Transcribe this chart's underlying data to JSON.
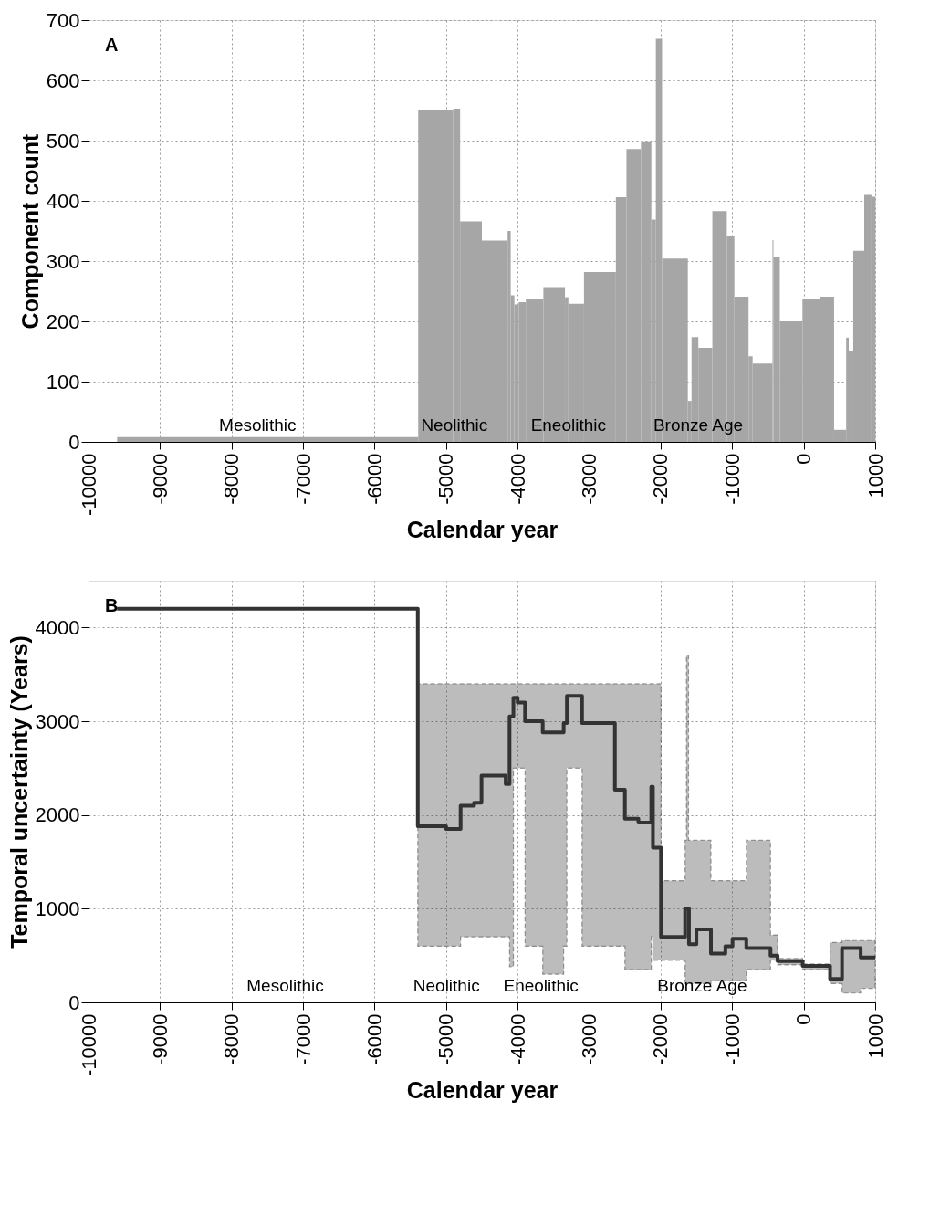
{
  "chart_data": [
    {
      "type": "histogram",
      "title": "A",
      "xlabel": "Calendar year",
      "ylabel": "Component count",
      "color": "#a6a6a6",
      "bins": [
        -9600,
        -5390,
        -4900,
        -4804,
        -4500,
        -4140,
        -4097,
        -4045,
        -3985,
        -3885,
        -3640,
        -3338,
        -3290,
        -3072,
        -2626,
        -2478,
        -2275,
        -2130,
        -2067,
        -1980,
        -1620,
        -1568,
        -1473,
        -1277,
        -1075,
        -969,
        -771,
        -714,
        -436,
        -423,
        -334,
        -17,
        224,
        425,
        594,
        630,
        693,
        847,
        948,
        1000
      ],
      "values": [
        8,
        551,
        553,
        366,
        334,
        350,
        243,
        228,
        232,
        237,
        257,
        240,
        229,
        282,
        406,
        486,
        499,
        369,
        669,
        304,
        68,
        174,
        156,
        383,
        341,
        241,
        142,
        130,
        335,
        306,
        200,
        237,
        241,
        20,
        173,
        150,
        317,
        410,
        407
      ],
      "xlim": [
        -10000,
        1000
      ],
      "xticks": [
        -10000,
        -9000,
        -8000,
        -7000,
        -6000,
        -5000,
        -4000,
        -3000,
        -2000,
        -1000,
        0,
        1000
      ],
      "ylim": [
        0,
        700
      ],
      "yticks": [
        0,
        100,
        200,
        300,
        400,
        500,
        600,
        700
      ],
      "grid": true,
      "annotations": [
        "Mesolithic",
        "Neolithic",
        "Eneolithic",
        "Bronze Age"
      ]
    },
    {
      "type": "step",
      "title": "B",
      "xlabel": "Calendar year",
      "ylabel": "Temporal uncertainty (Years)",
      "series": [
        {
          "color": "#333333",
          "x": [
            -9600,
            -5396,
            -5000,
            -4797,
            -4608,
            -4505,
            -4167,
            -4113,
            -4059,
            -4000,
            -3896,
            -3649,
            -3356,
            -3311,
            -3099,
            -2640,
            -2500,
            -2311,
            -2131,
            -2108,
            -1995,
            -1658,
            -1640,
            -1610,
            -1604,
            -1500,
            -1297,
            -1095,
            -995,
            -802,
            -464,
            -365,
            -14,
            369,
            536,
            797,
            1000
          ],
          "values": [
            4200,
            1880,
            1850,
            2100,
            2130,
            2420,
            2330,
            3050,
            3250,
            3200,
            3000,
            2880,
            2980,
            3270,
            2980,
            2270,
            1960,
            1920,
            2300,
            1650,
            700,
            1000,
            1000,
            1000,
            620,
            780,
            520,
            600,
            680,
            580,
            500,
            440,
            390,
            250,
            580,
            480,
            480
          ],
          "lower": [
            4200,
            600,
            600,
            700,
            700,
            700,
            700,
            380,
            2500,
            2500,
            600,
            300,
            600,
            2500,
            600,
            600,
            350,
            350,
            700,
            450,
            450,
            200,
            200,
            200,
            200,
            200,
            230,
            230,
            230,
            350,
            450,
            400,
            350,
            200,
            100,
            150,
            150
          ],
          "upper": [
            4200,
            3400,
            3400,
            3400,
            3400,
            3400,
            3400,
            3400,
            3400,
            3400,
            3400,
            3400,
            3400,
            3400,
            3400,
            3400,
            3400,
            3400,
            3400,
            3400,
            1300,
            1730,
            3700,
            1730,
            1730,
            1730,
            1300,
            1300,
            1300,
            1730,
            720,
            470,
            410,
            640,
            660,
            660,
            660
          ]
        }
      ],
      "xlim": [
        -10000,
        1000
      ],
      "xticks": [
        -10000,
        -9000,
        -8000,
        -7000,
        -6000,
        -5000,
        -4000,
        -3000,
        -2000,
        -1000,
        0,
        1000
      ],
      "ylim": [
        0,
        4500
      ],
      "yticks": [
        0,
        1000,
        2000,
        3000,
        4000
      ],
      "grid": true,
      "annotations": [
        "Mesolithic",
        "Neolithic",
        "Eneolithic",
        "Bronze Age"
      ]
    }
  ]
}
